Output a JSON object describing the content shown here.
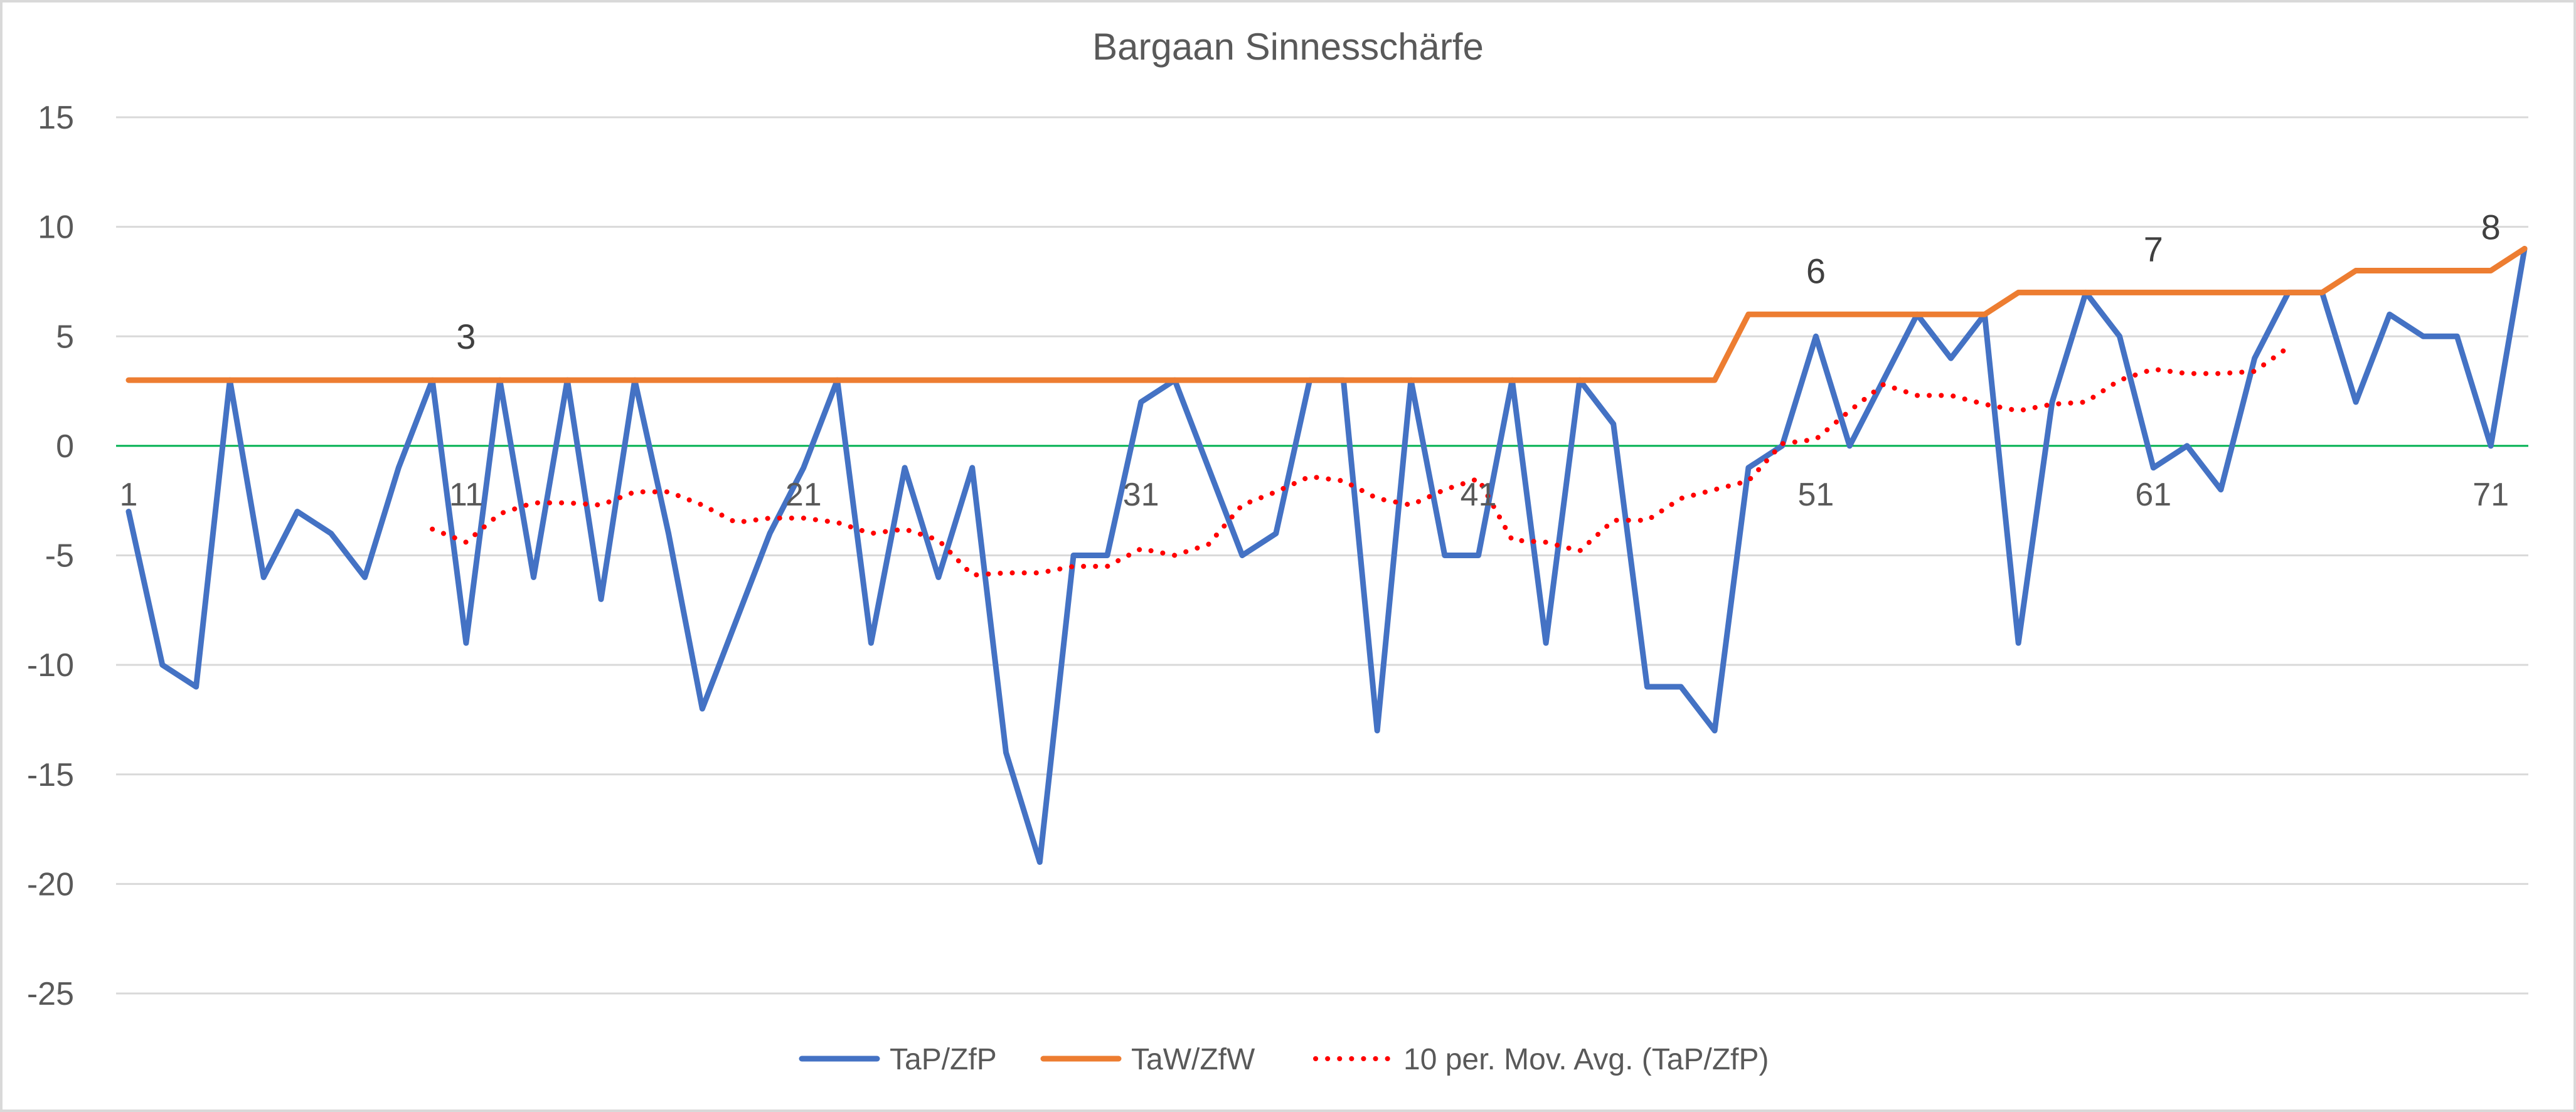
{
  "chart_data": {
    "type": "line",
    "title": "Bargaan Sinnesschärfe",
    "xlabel": "",
    "ylabel": "",
    "ylim": [
      -25,
      15
    ],
    "y_ticks": [
      15,
      10,
      5,
      0,
      -5,
      -10,
      -15,
      -20,
      -25
    ],
    "y_tick_labels": [
      "15",
      "10",
      "5",
      "0",
      "-5",
      "-10",
      "-15",
      "-20",
      "-25"
    ],
    "x": [
      1,
      2,
      3,
      4,
      5,
      6,
      7,
      8,
      9,
      10,
      11,
      12,
      13,
      14,
      15,
      16,
      17,
      18,
      19,
      20,
      21,
      22,
      23,
      24,
      25,
      26,
      27,
      28,
      29,
      30,
      31,
      32,
      33,
      34,
      35,
      36,
      37,
      38,
      39,
      40,
      41,
      42,
      43,
      44,
      45,
      46,
      47,
      48,
      49,
      50,
      51,
      52,
      53,
      54,
      55,
      56,
      57,
      58,
      59,
      60,
      61,
      62,
      63,
      64,
      65,
      66,
      67,
      68,
      69,
      70,
      71,
      72
    ],
    "x_tick_labels": [
      {
        "x": 1,
        "label": "1"
      },
      {
        "x": 11,
        "label": "11"
      },
      {
        "x": 21,
        "label": "21"
      },
      {
        "x": 31,
        "label": "31"
      },
      {
        "x": 41,
        "label": "41"
      },
      {
        "x": 51,
        "label": "51"
      },
      {
        "x": 61,
        "label": "61"
      },
      {
        "x": 71,
        "label": "71"
      }
    ],
    "series": [
      {
        "name": "TaP/ZfP",
        "color": "#4472c4",
        "style": "solid",
        "values": [
          -3,
          -10,
          -11,
          3,
          -6,
          -3,
          -4,
          -6,
          -1,
          3,
          -9,
          3,
          -6,
          3,
          -7,
          3,
          -4,
          -12,
          -8,
          -4,
          -1,
          3,
          -9,
          -1,
          -6,
          -1,
          -14,
          -19,
          -5,
          -5,
          2,
          3,
          -1,
          -5,
          -4,
          3,
          3,
          -13,
          3,
          -5,
          -5,
          3,
          -9,
          3,
          1,
          -11,
          -11,
          -13,
          -1,
          0,
          5,
          0,
          3,
          6,
          4,
          6,
          -9,
          2,
          7,
          5,
          -1,
          0,
          -2,
          4,
          7,
          7,
          2,
          6,
          5,
          5,
          0,
          9
        ]
      },
      {
        "name": "TaW/ZfW",
        "color": "#ed7d31",
        "style": "solid",
        "values": [
          3,
          3,
          3,
          3,
          3,
          3,
          3,
          3,
          3,
          3,
          3,
          3,
          3,
          3,
          3,
          3,
          3,
          3,
          3,
          3,
          3,
          3,
          3,
          3,
          3,
          3,
          3,
          3,
          3,
          3,
          3,
          3,
          3,
          3,
          3,
          3,
          3,
          3,
          3,
          3,
          3,
          3,
          3,
          3,
          3,
          3,
          3,
          3,
          6,
          6,
          6,
          6,
          6,
          6,
          6,
          6,
          7,
          7,
          7,
          7,
          7,
          7,
          7,
          7,
          7,
          7,
          8,
          8,
          8,
          8,
          8,
          9
        ]
      },
      {
        "name": "10 per. Mov. Avg. (TaP/ZfP)",
        "color": "#ff0000",
        "style": "dotted",
        "values": [
          null,
          null,
          null,
          null,
          null,
          null,
          null,
          null,
          null,
          -3.8,
          -4.4,
          -3.1,
          -2.6,
          -2.6,
          -2.7,
          -2.1,
          -2.1,
          -2.7,
          -3.5,
          -3.3,
          -3.3,
          -3.5,
          -4.0,
          -3.8,
          -4.3,
          -5.9,
          -5.8,
          -5.8,
          -5.5,
          -5.5,
          -4.7,
          -5.0,
          -4.5,
          -2.7,
          -2.1,
          -1.4,
          -1.6,
          -2.4,
          -2.7,
          -2.0,
          -1.5,
          -4.3,
          -4.4,
          -4.8,
          -3.4,
          -3.4,
          -2.4,
          -2.0,
          -1.6,
          0.1,
          0.3,
          1.6,
          2.8,
          2.3,
          2.3,
          1.9,
          1.6,
          1.9,
          2.0,
          3.0,
          3.5,
          3.3,
          3.3,
          3.4,
          4.5,
          null,
          null,
          null,
          null,
          null,
          null,
          null
        ]
      }
    ],
    "data_labels": [
      {
        "x": 11,
        "y": 3,
        "text": "3"
      },
      {
        "x": 51,
        "y": 6,
        "text": "6"
      },
      {
        "x": 61,
        "y": 7,
        "text": "7"
      },
      {
        "x": 71,
        "y": 8,
        "text": "8"
      }
    ],
    "zero_line_color": "#00b050",
    "gridlines": true,
    "legend_position": "bottom"
  }
}
